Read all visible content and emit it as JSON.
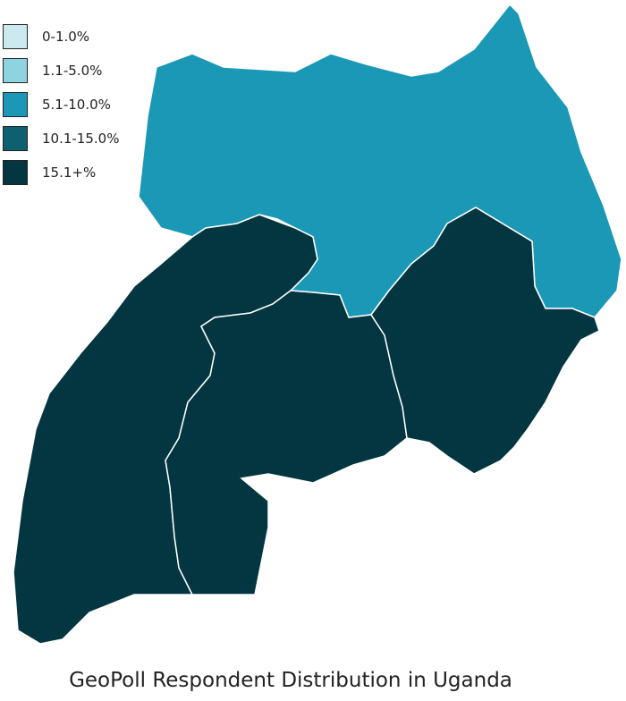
{
  "title": "GeoPoll Respondent Distribution in Uganda",
  "legend": [
    {
      "label": "0-1.0%",
      "color": "#cde9f0"
    },
    {
      "label": "1.1-5.0%",
      "color": "#8ed3e0"
    },
    {
      "label": "5.1-10.0%",
      "color": "#1a98b6"
    },
    {
      "label": "10.1-15.0%",
      "color": "#0e6070"
    },
    {
      "label": "15.1+%",
      "color": "#033640"
    }
  ],
  "regions": [
    {
      "region": "northern",
      "class": "5.1-10.0%",
      "color": "#1a98b6"
    },
    {
      "region": "western",
      "class": "15.1+%",
      "color": "#033640"
    },
    {
      "region": "central",
      "class": "15.1+%",
      "color": "#033640"
    },
    {
      "region": "eastern",
      "class": "15.1+%",
      "color": "#033640"
    }
  ]
}
